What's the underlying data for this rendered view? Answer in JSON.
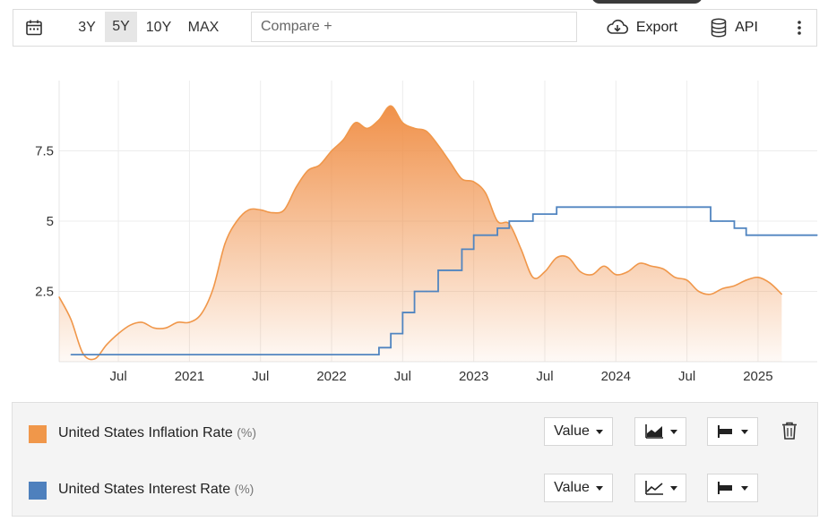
{
  "toolbar": {
    "ranges": [
      {
        "label": "3Y",
        "active": false
      },
      {
        "label": "5Y",
        "active": true
      },
      {
        "label": "10Y",
        "active": false
      },
      {
        "label": "MAX",
        "active": false
      }
    ],
    "compare_placeholder": "Compare +",
    "export_label": "Export",
    "api_label": "API"
  },
  "chart_data": {
    "type": "area",
    "title": "",
    "xlabel": "",
    "ylabel": "",
    "x_ticks": [
      "Jul",
      "2021",
      "Jul",
      "2022",
      "Jul",
      "2023",
      "Jul",
      "2024",
      "Jul",
      "2025"
    ],
    "y_ticks": [
      "2.5",
      "5",
      "7.5"
    ],
    "ylim": [
      0,
      10
    ],
    "xlim": [
      "2020-02",
      "2025-06"
    ],
    "grid": true,
    "series": [
      {
        "name": "United States Inflation Rate",
        "unit": "(%)",
        "style": "area",
        "color": "#f0974a",
        "x": [
          "2020-02",
          "2020-03",
          "2020-04",
          "2020-05",
          "2020-06",
          "2020-07",
          "2020-08",
          "2020-09",
          "2020-10",
          "2020-11",
          "2020-12",
          "2021-01",
          "2021-02",
          "2021-03",
          "2021-04",
          "2021-05",
          "2021-06",
          "2021-07",
          "2021-08",
          "2021-09",
          "2021-10",
          "2021-11",
          "2021-12",
          "2022-01",
          "2022-02",
          "2022-03",
          "2022-04",
          "2022-05",
          "2022-06",
          "2022-07",
          "2022-08",
          "2022-09",
          "2022-10",
          "2022-11",
          "2022-12",
          "2023-01",
          "2023-02",
          "2023-03",
          "2023-04",
          "2023-05",
          "2023-06",
          "2023-07",
          "2023-08",
          "2023-09",
          "2023-10",
          "2023-11",
          "2023-12",
          "2024-01",
          "2024-02",
          "2024-03",
          "2024-04",
          "2024-05",
          "2024-06",
          "2024-07",
          "2024-08",
          "2024-09",
          "2024-10",
          "2024-11",
          "2024-12",
          "2025-01",
          "2025-02",
          "2025-03"
        ],
        "values": [
          2.3,
          1.5,
          0.3,
          0.1,
          0.6,
          1.0,
          1.3,
          1.4,
          1.2,
          1.2,
          1.4,
          1.4,
          1.7,
          2.6,
          4.2,
          5.0,
          5.4,
          5.4,
          5.3,
          5.4,
          6.2,
          6.8,
          7.0,
          7.5,
          7.9,
          8.5,
          8.3,
          8.6,
          9.1,
          8.5,
          8.3,
          8.2,
          7.7,
          7.1,
          6.5,
          6.4,
          6.0,
          5.0,
          4.9,
          4.0,
          3.0,
          3.2,
          3.7,
          3.7,
          3.2,
          3.1,
          3.4,
          3.1,
          3.2,
          3.5,
          3.4,
          3.3,
          3.0,
          2.9,
          2.5,
          2.4,
          2.6,
          2.7,
          2.9,
          3.0,
          2.8,
          2.4
        ]
      },
      {
        "name": "United States Interest Rate",
        "unit": "(%)",
        "style": "line",
        "color": "#5185c0",
        "x": [
          "2020-03",
          "2022-03",
          "2022-05",
          "2022-06",
          "2022-07",
          "2022-08",
          "2022-09",
          "2022-10",
          "2022-11",
          "2022-12",
          "2023-01",
          "2023-02",
          "2023-03",
          "2023-04",
          "2023-05",
          "2023-06",
          "2023-07",
          "2023-08",
          "2023-09",
          "2024-08",
          "2024-09",
          "2024-10",
          "2024-11",
          "2024-12",
          "2025-06"
        ],
        "values": [
          0.25,
          0.25,
          0.5,
          1.0,
          1.75,
          2.5,
          2.5,
          3.25,
          3.25,
          4.0,
          4.5,
          4.5,
          4.75,
          5.0,
          5.0,
          5.25,
          5.25,
          5.5,
          5.5,
          5.5,
          5.0,
          5.0,
          4.75,
          4.5,
          4.5
        ]
      }
    ]
  },
  "legend": {
    "series": [
      {
        "label": "United States Inflation Rate",
        "unit": "(%)",
        "value_label": "Value",
        "color": "#f0974a",
        "chart_type_icon": "area-chart-icon"
      },
      {
        "label": "United States Interest Rate",
        "unit": "(%)",
        "value_label": "Value",
        "color": "#4e80bd",
        "chart_type_icon": "line-chart-icon"
      }
    ]
  }
}
